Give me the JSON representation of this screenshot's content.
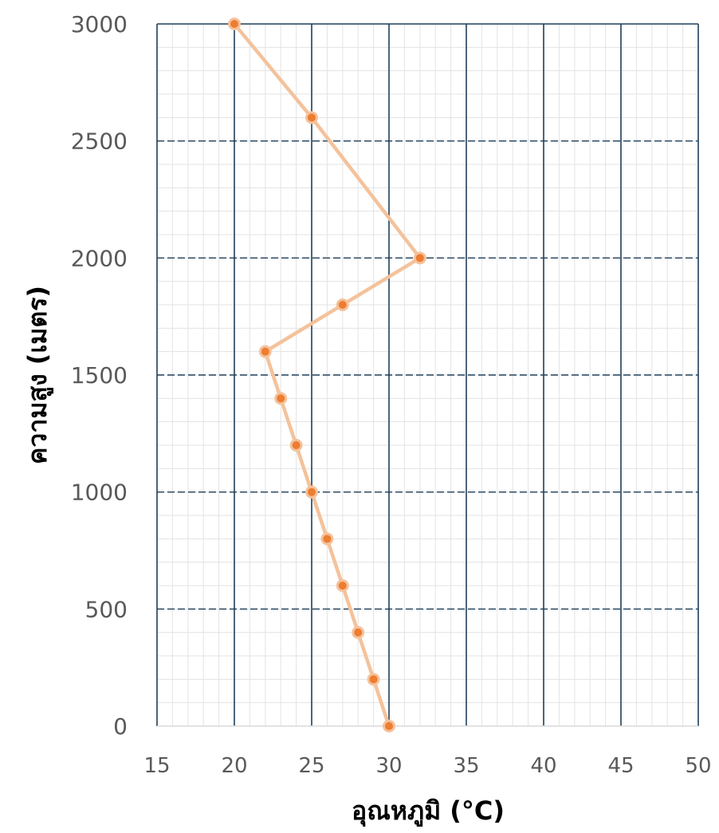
{
  "chart_data": {
    "type": "line",
    "xlabel": "อุณหภูมิ (°C)",
    "ylabel": "ความสูง   (เมตร)",
    "xlim": [
      15,
      50
    ],
    "ylim": [
      0,
      3000
    ],
    "x_ticks": [
      "15",
      "20",
      "25",
      "30",
      "35",
      "40",
      "45",
      "50"
    ],
    "y_ticks": [
      "0",
      "500",
      "1000",
      "1500",
      "2000",
      "2500",
      "3000"
    ],
    "x_major_step": 5,
    "x_minor_step": 1,
    "y_major_step": 500,
    "y_minor_step": 100,
    "grid": true,
    "series": [
      {
        "x": [
          30,
          29,
          28,
          27,
          26,
          25,
          24,
          23,
          22,
          27,
          32,
          25,
          20
        ],
        "y": [
          0,
          200,
          400,
          600,
          800,
          1000,
          1200,
          1400,
          1600,
          1800,
          2000,
          2600,
          3000
        ],
        "line_color": "#F4C29B",
        "marker_color": "#ED7D31"
      }
    ],
    "colors": {
      "major_grid": "#1F3F5A",
      "minor_grid": "#E3E3E3",
      "tick_text": "#595959"
    }
  }
}
